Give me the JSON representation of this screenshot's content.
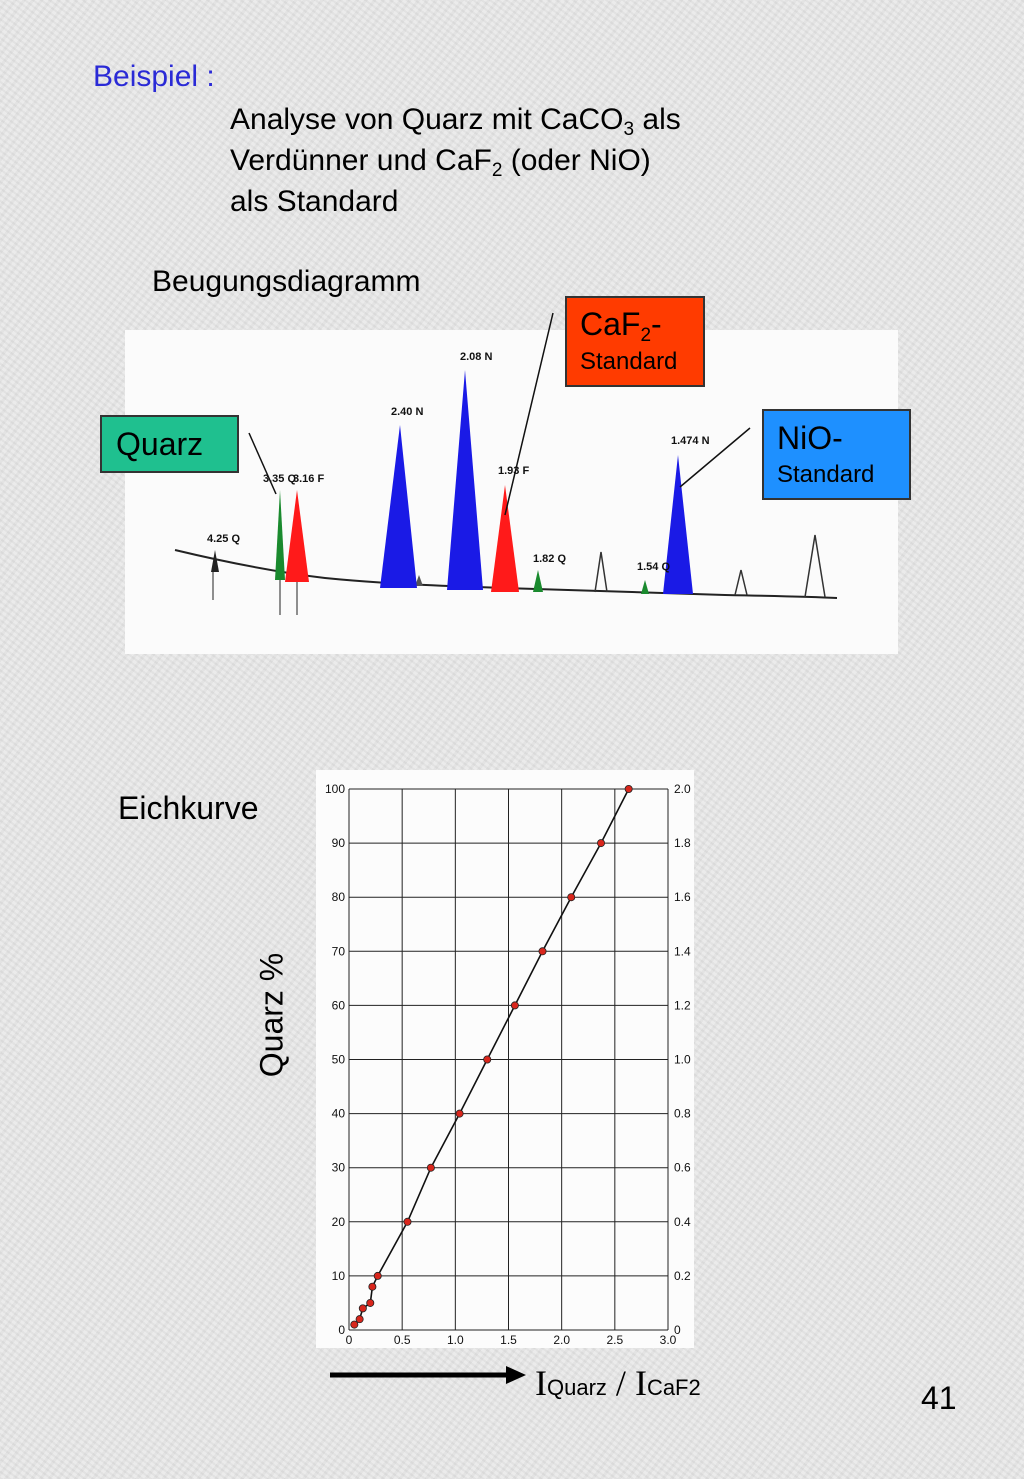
{
  "header": {
    "example_label": "Beispiel :",
    "line1_a": "Analyse von Quarz mit CaCO",
    "line1_sub": "3",
    "line1_b": " als",
    "line2_a": "Verdünner und CaF",
    "line2_sub": "2",
    "line2_b": " (oder NiO)",
    "line3": "als Standard"
  },
  "diffraction": {
    "title": "Beugungsdiagramm",
    "peak_labels": [
      "4.25 Q",
      "3.35 Q",
      "3.16 F",
      "2.40 N",
      "2.08 N",
      "1.93 F",
      "1.82 Q",
      "1.54 Q",
      "1.474 N"
    ],
    "callouts": {
      "quarz": "Quarz",
      "caf2_main": "CaF",
      "caf2_sub": "2",
      "caf2_dash": "-",
      "caf2_small": "Standard",
      "nio_main": "NiO-",
      "nio_small": "Standard"
    },
    "colors": {
      "quarz": "#1fc08f",
      "caf2": "#ff3b00",
      "nio": "#1e90ff",
      "peak_quarz": "#1a8a2e",
      "peak_caf2": "#ff1a1a",
      "peak_nio": "#1a1ae6"
    }
  },
  "calibration": {
    "title": "Eichkurve",
    "ylabel": "Quarz %",
    "xlabel_main1": "I",
    "xlabel_sub1": "Quarz",
    "xlabel_sep": " / ",
    "xlabel_main2": "I",
    "xlabel_sub2": "CaF2"
  },
  "chart_data": {
    "type": "line",
    "xlim": [
      0,
      3.0
    ],
    "ylim": [
      0,
      100
    ],
    "y2lim": [
      0,
      2.0
    ],
    "x_ticks": [
      "0",
      "0.5",
      "1.0",
      "1.5",
      "2.0",
      "2.5",
      "3.0"
    ],
    "y_ticks": [
      "100",
      "90",
      "80",
      "70",
      "60",
      "50",
      "40",
      "30",
      "20",
      "10",
      "0"
    ],
    "y2_ticks": [
      "2.0",
      "1.8",
      "1.6",
      "1.4",
      "1.2",
      "1.0",
      "0.8",
      "0.6",
      "0.4",
      "0.2",
      "0"
    ],
    "grid": true,
    "series": [
      {
        "x": [
          0.05,
          0.1,
          0.13,
          0.2,
          0.22,
          0.27,
          0.55,
          0.77,
          1.04,
          1.3,
          1.56,
          1.82,
          2.09,
          2.37,
          2.63
        ],
        "y": [
          1,
          2,
          4,
          5,
          8,
          10,
          20,
          30,
          40,
          50,
          60,
          70,
          80,
          90,
          100
        ]
      }
    ]
  },
  "page": {
    "number": "41"
  }
}
